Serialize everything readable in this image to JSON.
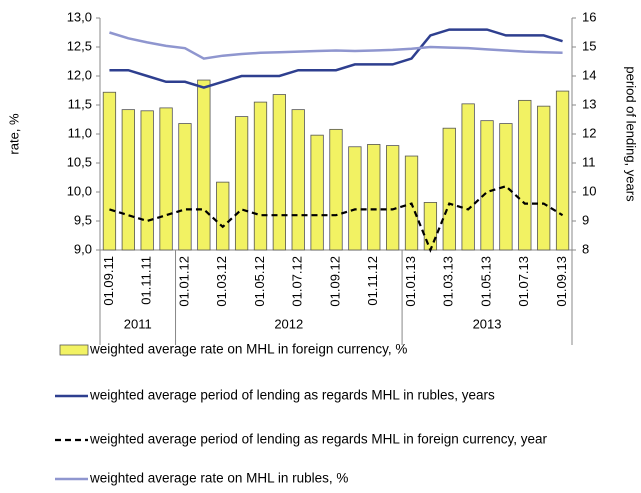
{
  "chart_data": {
    "type": "bar",
    "categories": [
      "01.09.11",
      null,
      "01.11.11",
      null,
      "01.01.12",
      null,
      "01.03.12",
      null,
      "01.05.12",
      null,
      "01.07.12",
      null,
      "01.09.12",
      null,
      "01.11.12",
      null,
      "01.01.13",
      null,
      "01.03.13",
      null,
      "01.05.13",
      null,
      "01.07.13",
      null,
      "01.09.13"
    ],
    "year_labels": [
      "2011",
      "2012",
      "2013"
    ],
    "ylabel": "rate, %",
    "y2label": "period of lending, years",
    "ylim": [
      9,
      13
    ],
    "yticks": [
      {
        "value": 9,
        "label": "9,0"
      },
      {
        "value": 9.5,
        "label": "9,5"
      },
      {
        "value": 10,
        "label": "10,0"
      },
      {
        "value": 10.5,
        "label": "10,5"
      },
      {
        "value": 11,
        "label": "11,0"
      },
      {
        "value": 11.5,
        "label": "11,5"
      },
      {
        "value": 12,
        "label": "12,0"
      },
      {
        "value": 12.5,
        "label": "12,5"
      },
      {
        "value": 13,
        "label": "13,0"
      }
    ],
    "y2lim": [
      8,
      16
    ],
    "y2ticks": [
      8,
      9,
      10,
      11,
      12,
      13,
      14,
      15,
      16
    ],
    "series": [
      {
        "name": "weighted average rate on MHL in foreign currency, %",
        "type": "bar",
        "color": "#f2f263",
        "values": [
          11.72,
          11.42,
          11.4,
          11.45,
          11.18,
          11.93,
          10.17,
          11.3,
          11.55,
          11.68,
          11.42,
          10.98,
          11.08,
          10.78,
          10.82,
          10.8,
          10.62,
          9.82,
          11.1,
          11.52,
          11.23,
          11.18,
          11.58,
          11.48,
          11.74
        ]
      },
      {
        "name": "weighted average period of lending as regards MHL in rubles, years",
        "type": "line",
        "axis": "y2",
        "color": "#2e3f8f",
        "values": [
          14.2,
          14.2,
          14.0,
          13.8,
          13.8,
          13.6,
          13.8,
          14.0,
          14.0,
          14.0,
          14.2,
          14.2,
          14.2,
          14.4,
          14.4,
          14.4,
          14.6,
          15.4,
          15.6,
          15.6,
          15.6,
          15.4,
          15.4,
          15.4,
          15.2
        ]
      },
      {
        "name": "weighted average period of lending as regards MHL in foreign currency, year",
        "type": "dashed",
        "axis": "y2",
        "color": "#000000",
        "values": [
          9.4,
          9.2,
          9.0,
          9.2,
          9.4,
          9.4,
          8.8,
          9.4,
          9.2,
          9.2,
          9.2,
          9.2,
          9.2,
          9.4,
          9.4,
          9.4,
          9.6,
          8.0,
          9.6,
          9.4,
          10.0,
          10.2,
          9.6,
          9.6,
          9.2
        ]
      },
      {
        "name": "weighted average rate on MHL in rubles, %",
        "type": "line",
        "color": "#8f96cf",
        "values": [
          12.75,
          12.65,
          12.58,
          12.52,
          12.48,
          12.3,
          12.35,
          12.38,
          12.4,
          12.41,
          12.42,
          12.43,
          12.44,
          12.43,
          12.44,
          12.45,
          12.47,
          12.5,
          12.49,
          12.48,
          12.46,
          12.44,
          12.42,
          12.41,
          12.4
        ]
      }
    ]
  }
}
